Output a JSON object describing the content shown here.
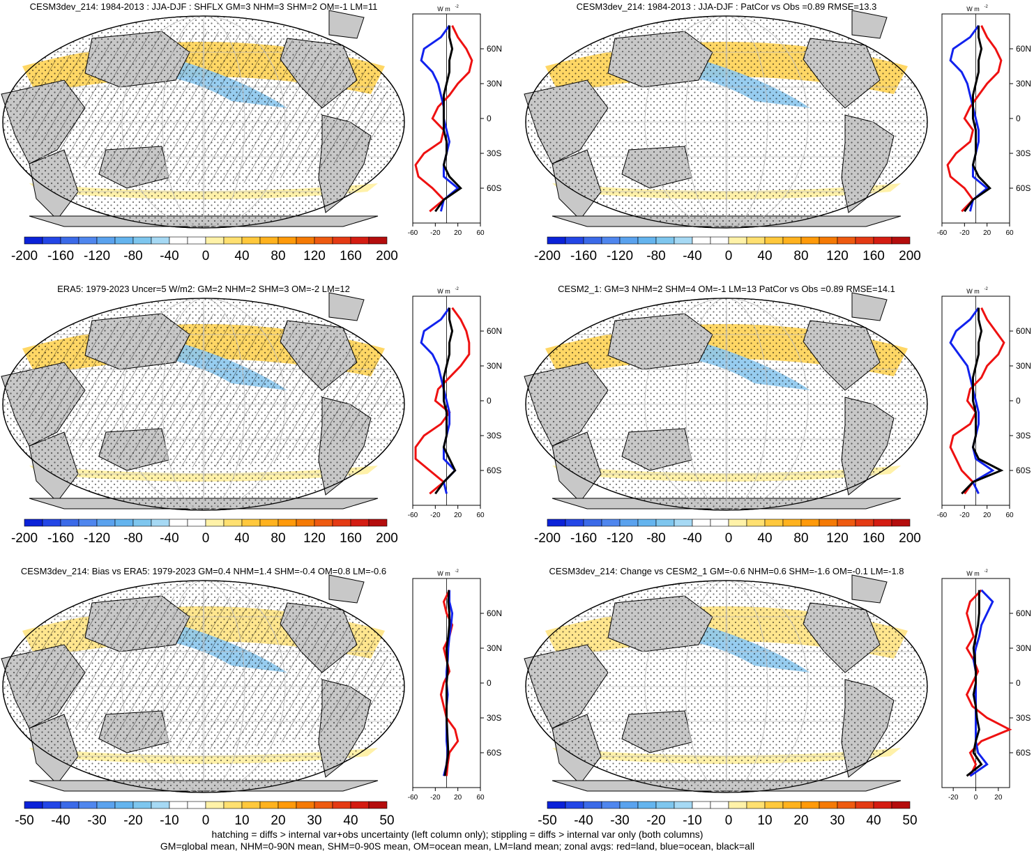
{
  "colors": {
    "land": "#c8c8c8",
    "ocean": "#ffffff",
    "red_line": "#ee1111",
    "blue_line": "#1122ee",
    "black_line": "#000000"
  },
  "colorbar_palette": [
    "#0b22d8",
    "#2346e6",
    "#3b6ae8",
    "#4f86ee",
    "#5aa2ee",
    "#64b4ee",
    "#7ec6ee",
    "#a6d9f4",
    "#ffffff",
    "#ffffff",
    "#fff2a8",
    "#ffe070",
    "#ffc83c",
    "#ffb21e",
    "#ff9a0a",
    "#f57a05",
    "#ee5a10",
    "#e43a14",
    "#d41c12",
    "#b40d0d"
  ],
  "colorbars": {
    "flux": {
      "ticks": [
        "-200",
        "-160",
        "-120",
        "-80",
        "-40",
        "0",
        "40",
        "80",
        "120",
        "160",
        "200"
      ]
    },
    "bias": {
      "ticks": [
        "-50",
        "-40",
        "-30",
        "-20",
        "-10",
        "0",
        "10",
        "20",
        "30",
        "40",
        "50"
      ]
    }
  },
  "zonal_units": "W m",
  "zonal_units_sup": "-2",
  "lat_ticks": [
    "60N",
    "30N",
    "0",
    "30S",
    "60S"
  ],
  "zonal_xticks_wide": [
    "-60",
    "-20",
    "20",
    "60"
  ],
  "zonal_xticks_narrow": [
    "-20",
    "0",
    "20"
  ],
  "panels": [
    {
      "title": "CESM3dev_214: 1984-2013 : JJA-DJF : SHFLX GM=3 NHM=3 SHM=2 OM=-1 LM=11",
      "hatch": true,
      "scale": "flux"
    },
    {
      "title": "CESM3dev_214: 1984-2013 : JJA-DJF : PatCor vs Obs =0.89 RMSE=13.3",
      "hatch": false,
      "scale": "flux"
    },
    {
      "title": "ERA5: 1979-2023 Uncer=5 W/m2: GM=2 NHM=2 SHM=3 OM=-2 LM=12",
      "hatch": true,
      "scale": "flux"
    },
    {
      "title": "CESM2_1: GM=3 NHM=2 SHM=4 OM=-1 LM=13 PatCor vs Obs =0.89 RMSE=14.1",
      "hatch": false,
      "scale": "flux"
    },
    {
      "title": "CESM3dev_214: Bias vs ERA5: 1979-2023 GM=0.4 NHM=1.4 SHM=-0.4 OM=0.8 LM=-0.6",
      "hatch": true,
      "scale": "bias"
    },
    {
      "title": "CESM3dev_214: Change vs CESM2_1 GM=-0.6 NHM=0.6 SHM=-1.6 OM=-0.1 LM=-1.8",
      "hatch": false,
      "scale": "bias"
    }
  ],
  "chart_data": [
    {
      "type": "line",
      "panel": 1,
      "title": "zonal avg",
      "xlim": [
        -60,
        60
      ],
      "xticks": [
        -60,
        -20,
        20,
        60
      ],
      "lat": [
        -80,
        -70,
        -60,
        -50,
        -40,
        -30,
        -20,
        -10,
        0,
        10,
        20,
        30,
        40,
        50,
        60,
        70,
        80
      ],
      "series": [
        {
          "name": "land",
          "values": [
            -30,
            -5,
            -25,
            -50,
            -55,
            -40,
            -10,
            -5,
            -25,
            -15,
            5,
            20,
            40,
            45,
            35,
            20,
            10
          ]
        },
        {
          "name": "ocean",
          "values": [
            -10,
            -5,
            20,
            -5,
            -5,
            0,
            5,
            0,
            -5,
            -5,
            -10,
            -15,
            -25,
            -45,
            -40,
            -10,
            5
          ]
        },
        {
          "name": "all",
          "values": [
            -20,
            -5,
            25,
            5,
            -5,
            0,
            0,
            -5,
            -5,
            -5,
            -5,
            0,
            5,
            5,
            10,
            5,
            5
          ]
        }
      ]
    },
    {
      "type": "line",
      "panel": 2,
      "title": "zonal avg",
      "xlim": [
        -60,
        60
      ],
      "xticks": [
        -60,
        -20,
        20,
        60
      ],
      "lat": [
        -80,
        -70,
        -60,
        -50,
        -40,
        -30,
        -20,
        -10,
        0,
        10,
        20,
        30,
        40,
        50,
        60,
        70,
        80
      ],
      "series": [
        {
          "name": "land",
          "values": [
            -25,
            -5,
            -20,
            -45,
            -50,
            -35,
            -10,
            -5,
            -20,
            -10,
            5,
            20,
            40,
            45,
            35,
            20,
            10
          ]
        },
        {
          "name": "ocean",
          "values": [
            -10,
            -5,
            20,
            -5,
            -5,
            0,
            5,
            5,
            0,
            -5,
            -10,
            -15,
            -25,
            -45,
            -40,
            -10,
            5
          ]
        },
        {
          "name": "all",
          "values": [
            -20,
            -5,
            25,
            5,
            -5,
            0,
            0,
            0,
            -5,
            -5,
            -5,
            0,
            5,
            5,
            10,
            5,
            5
          ]
        }
      ]
    },
    {
      "type": "line",
      "panel": 3,
      "title": "zonal avg",
      "xlim": [
        -60,
        60
      ],
      "xticks": [
        -60,
        -20,
        20,
        60
      ],
      "lat": [
        -80,
        -70,
        -60,
        -50,
        -40,
        -30,
        -20,
        -10,
        0,
        10,
        20,
        30,
        40,
        50,
        60,
        70,
        80
      ],
      "series": [
        {
          "name": "land",
          "values": [
            -30,
            -5,
            -30,
            -55,
            -55,
            -40,
            -10,
            5,
            -20,
            -15,
            5,
            25,
            40,
            40,
            35,
            25,
            10
          ]
        },
        {
          "name": "ocean",
          "values": [
            0,
            -5,
            15,
            -5,
            -5,
            0,
            5,
            5,
            0,
            -5,
            -10,
            -15,
            -25,
            -45,
            -40,
            -10,
            5
          ]
        },
        {
          "name": "all",
          "values": [
            -20,
            -5,
            15,
            5,
            -5,
            0,
            0,
            0,
            -5,
            -5,
            -5,
            0,
            5,
            5,
            10,
            5,
            5
          ]
        }
      ]
    },
    {
      "type": "line",
      "panel": 4,
      "title": "zonal avg",
      "xlim": [
        -60,
        60
      ],
      "xticks": [
        -60,
        -20,
        20,
        60
      ],
      "lat": [
        -80,
        -70,
        -60,
        -50,
        -40,
        -30,
        -20,
        -10,
        0,
        10,
        20,
        30,
        40,
        50,
        60,
        70,
        80
      ],
      "series": [
        {
          "name": "land",
          "values": [
            -20,
            -5,
            -25,
            -35,
            -45,
            -40,
            -10,
            0,
            -15,
            -10,
            10,
            20,
            40,
            50,
            35,
            20,
            10
          ]
        },
        {
          "name": "ocean",
          "values": [
            5,
            -5,
            30,
            0,
            -5,
            0,
            5,
            5,
            0,
            -5,
            -10,
            -15,
            -30,
            -45,
            -35,
            -10,
            5
          ]
        },
        {
          "name": "all",
          "values": [
            -25,
            -5,
            45,
            5,
            -5,
            0,
            0,
            0,
            -5,
            -5,
            -5,
            0,
            5,
            5,
            10,
            5,
            5
          ]
        }
      ]
    },
    {
      "type": "line",
      "panel": 5,
      "title": "zonal avg",
      "xlim": [
        -60,
        60
      ],
      "xticks": [
        -60,
        -20,
        20,
        60
      ],
      "lat": [
        -80,
        -70,
        -60,
        -50,
        -40,
        -30,
        -20,
        -10,
        0,
        10,
        20,
        30,
        40,
        50,
        60,
        70,
        80
      ],
      "series": [
        {
          "name": "land",
          "values": [
            0,
            2,
            5,
            20,
            15,
            0,
            -5,
            -10,
            -5,
            5,
            0,
            -5,
            5,
            10,
            0,
            -5,
            5
          ]
        },
        {
          "name": "ocean",
          "values": [
            -5,
            0,
            2,
            0,
            0,
            0,
            0,
            2,
            0,
            0,
            2,
            3,
            5,
            8,
            10,
            5,
            5
          ]
        },
        {
          "name": "all",
          "values": [
            -3,
            0,
            3,
            2,
            1,
            0,
            0,
            0,
            0,
            2,
            1,
            0,
            3,
            5,
            5,
            3,
            4
          ]
        }
      ]
    },
    {
      "type": "line",
      "panel": 6,
      "title": "zonal avg",
      "xlim": [
        -30,
        30
      ],
      "xticks": [
        -20,
        0,
        20
      ],
      "lat": [
        -80,
        -70,
        -60,
        -50,
        -40,
        -30,
        -20,
        -10,
        0,
        10,
        20,
        30,
        40,
        50,
        60,
        70,
        80
      ],
      "series": [
        {
          "name": "land",
          "values": [
            -5,
            0,
            -5,
            5,
            30,
            10,
            -3,
            -8,
            -3,
            2,
            -2,
            -8,
            -2,
            -5,
            -8,
            -5,
            5
          ]
        },
        {
          "name": "ocean",
          "values": [
            -5,
            10,
            2,
            0,
            0,
            0,
            0,
            0,
            0,
            0,
            -2,
            0,
            3,
            5,
            10,
            15,
            5
          ]
        },
        {
          "name": "all",
          "values": [
            -8,
            5,
            -2,
            0,
            3,
            1,
            0,
            -2,
            0,
            0,
            -1,
            -2,
            0,
            2,
            3,
            3,
            3
          ]
        }
      ]
    }
  ],
  "footer": {
    "line1": "hatching = diffs > internal var+obs uncertainty (left column only); stippling = diffs > internal var only (both columns)",
    "line2": "GM=global mean, NHM=0-90N mean, SHM=0-90S mean, OM=ocean mean, LM=land mean; zonal avgs: red=land, blue=ocean, black=all"
  }
}
